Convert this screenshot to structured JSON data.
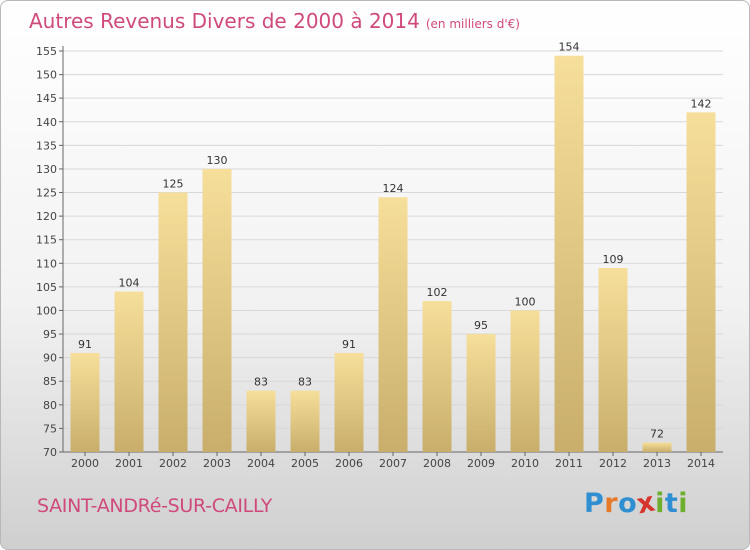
{
  "title": {
    "main": "Autres Revenus Divers de 2000 à 2014",
    "unit": "(en milliers d'€)"
  },
  "commune": "SAINT-ANDRé-SUR-CAILLY",
  "logo": {
    "text": "Proxiti",
    "letters": [
      {
        "char": "P",
        "color": "#2f8fd0"
      },
      {
        "char": "r",
        "color": "#e57a2a"
      },
      {
        "char": "o",
        "color": "#2f8fd0"
      },
      {
        "char": "x",
        "color": "#d6332b"
      },
      {
        "char": "i",
        "color": "#6eae2f"
      },
      {
        "char": "t",
        "color": "#2f8fd0"
      },
      {
        "char": "i",
        "color": "#6eae2f"
      }
    ]
  },
  "colors": {
    "title": "#d0497c",
    "bar_top": "#f6df9a",
    "bar_bottom": "#c9ae6b",
    "grid": "#d8d8d8"
  },
  "chart_data": {
    "type": "bar",
    "title": "Autres Revenus Divers de 2000 à 2014",
    "subtitle": "(en milliers d'€)",
    "xlabel": "",
    "ylabel": "",
    "categories": [
      "2000",
      "2001",
      "2002",
      "2003",
      "2004",
      "2005",
      "2006",
      "2007",
      "2008",
      "2009",
      "2010",
      "2011",
      "2012",
      "2013",
      "2014"
    ],
    "values": [
      91,
      104,
      125,
      130,
      83,
      83,
      91,
      124,
      102,
      95,
      100,
      154,
      109,
      72,
      142
    ],
    "ylim": [
      70,
      155
    ],
    "yticks": [
      70,
      75,
      80,
      85,
      90,
      95,
      100,
      105,
      110,
      115,
      120,
      125,
      130,
      135,
      140,
      145,
      150,
      155
    ],
    "grid": true,
    "legend": "none"
  }
}
